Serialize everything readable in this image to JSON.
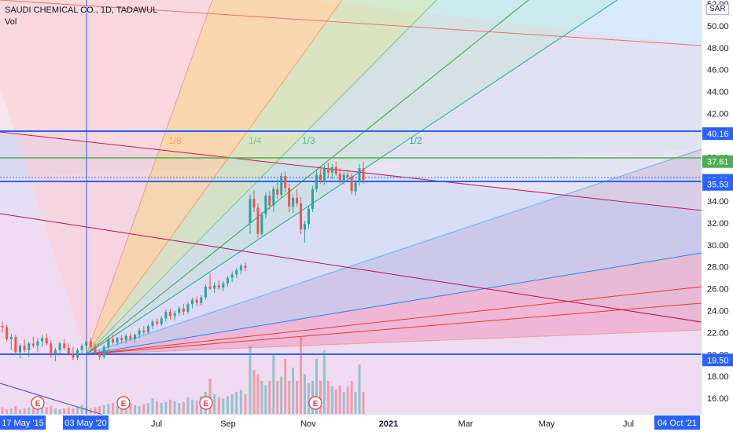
{
  "header": {
    "title": "SAUDI CHEMICAL CO., 1D, TADAWUL",
    "indicator": "Vol",
    "currency": "SAR"
  },
  "chart_data": {
    "type": "candlestick",
    "ylim": [
      14.5,
      52
    ],
    "y_ticks": [
      "16.00",
      "18.00",
      "20.00",
      "22.00",
      "24.00",
      "26.00",
      "28.00",
      "30.00",
      "32.00",
      "34.00",
      "36.00",
      "38.00",
      "40.00",
      "42.00",
      "44.00",
      "46.00",
      "48.00",
      "50.00",
      "52.00"
    ],
    "x_ticks": [
      "Jul",
      "Sep",
      "Nov",
      "2021",
      "Mar",
      "May",
      "Jul"
    ],
    "x_badges": [
      "17 May '15",
      "03 May '20",
      "04 Oct '21"
    ],
    "price_badges": [
      {
        "label": "40.16",
        "value": 40.16,
        "color": "#2962ff"
      },
      {
        "label": "37.61",
        "value": 37.61,
        "color": "#4caf50"
      },
      {
        "label": "35.90",
        "value": 35.9,
        "color": "#2962ff"
      },
      {
        "label": "35.53",
        "value": 35.53,
        "color": "#2962ff"
      },
      {
        "label": "19.50",
        "value": 19.5,
        "color": "#2962ff"
      }
    ],
    "fan_labels": [
      {
        "label": "1/8",
        "color": "#f6a35e"
      },
      {
        "label": "1/4",
        "color": "#81c784"
      },
      {
        "label": "1/3",
        "color": "#66bb6a"
      },
      {
        "label": "1/2",
        "color": "#26a69a"
      }
    ],
    "earnings_markers": [
      "E",
      "E",
      "E",
      "E"
    ],
    "price_series": [
      [
        22.6,
        23.0,
        22.0,
        22.5
      ],
      [
        22.5,
        22.7,
        21.2,
        21.4
      ],
      [
        21.4,
        21.9,
        20.4,
        21.6
      ],
      [
        21.6,
        21.8,
        20.0,
        20.2
      ],
      [
        20.2,
        21.0,
        19.6,
        20.8
      ],
      [
        20.8,
        21.4,
        20.2,
        20.4
      ],
      [
        20.4,
        21.2,
        19.8,
        21.0
      ],
      [
        21.0,
        21.6,
        20.6,
        20.8
      ],
      [
        20.8,
        21.5,
        20.2,
        21.2
      ],
      [
        21.2,
        21.8,
        20.7,
        21.5
      ],
      [
        21.5,
        21.9,
        20.8,
        21.0
      ],
      [
        21.0,
        21.3,
        19.7,
        20.0
      ],
      [
        20.0,
        20.6,
        19.4,
        20.4
      ],
      [
        20.4,
        21.2,
        20.1,
        21.0
      ],
      [
        21.0,
        21.4,
        20.4,
        20.6
      ],
      [
        20.6,
        21.0,
        19.9,
        20.1
      ],
      [
        20.1,
        20.7,
        19.5,
        19.7
      ],
      [
        19.7,
        20.6,
        19.5,
        20.4
      ],
      [
        20.4,
        21.0,
        20.0,
        20.8
      ],
      [
        20.8,
        21.4,
        20.2,
        21.2
      ],
      [
        21.2,
        21.5,
        20.5,
        20.7
      ],
      [
        20.7,
        21.0,
        20.0,
        20.2
      ],
      [
        20.2,
        20.4,
        19.5,
        19.8
      ],
      [
        19.8,
        20.9,
        19.6,
        20.7
      ],
      [
        20.7,
        21.6,
        20.4,
        21.4
      ],
      [
        21.4,
        21.8,
        20.9,
        21.1
      ],
      [
        21.1,
        21.6,
        20.8,
        21.5
      ],
      [
        21.5,
        21.8,
        21.0,
        21.3
      ],
      [
        21.3,
        21.9,
        21.0,
        21.7
      ],
      [
        21.7,
        22.0,
        21.2,
        21.4
      ],
      [
        21.4,
        21.9,
        21.1,
        21.8
      ],
      [
        21.8,
        22.4,
        21.5,
        22.2
      ],
      [
        22.2,
        22.6,
        21.8,
        22.0
      ],
      [
        22.0,
        22.8,
        21.9,
        22.6
      ],
      [
        22.6,
        23.2,
        22.3,
        23.0
      ],
      [
        23.0,
        23.3,
        22.5,
        22.8
      ],
      [
        22.8,
        23.5,
        22.6,
        23.3
      ],
      [
        23.3,
        24.1,
        23.0,
        23.9
      ],
      [
        23.9,
        24.2,
        23.2,
        23.5
      ],
      [
        23.5,
        24.0,
        23.1,
        23.8
      ],
      [
        23.8,
        24.4,
        23.5,
        24.2
      ],
      [
        24.2,
        24.6,
        23.6,
        23.9
      ],
      [
        23.9,
        24.8,
        23.7,
        24.6
      ],
      [
        24.6,
        25.2,
        24.2,
        25.0
      ],
      [
        25.0,
        25.3,
        24.4,
        24.7
      ],
      [
        24.7,
        25.4,
        24.5,
        25.2
      ],
      [
        25.2,
        26.4,
        25.0,
        26.2
      ],
      [
        26.2,
        27.4,
        25.9,
        26.0
      ],
      [
        26.0,
        26.6,
        25.6,
        26.3
      ],
      [
        26.3,
        26.8,
        25.9,
        26.1
      ],
      [
        26.1,
        26.7,
        25.8,
        26.5
      ],
      [
        26.5,
        27.2,
        26.2,
        27.0
      ],
      [
        27.0,
        27.6,
        26.6,
        27.3
      ],
      [
        27.3,
        27.9,
        27.0,
        27.7
      ],
      [
        27.7,
        28.3,
        27.3,
        28.1
      ],
      [
        28.1,
        28.4,
        27.6,
        27.9
      ],
      [
        32.0,
        34.6,
        31.0,
        34.2
      ],
      [
        34.2,
        35.0,
        33.0,
        33.4
      ],
      [
        33.4,
        33.8,
        30.6,
        31.0
      ],
      [
        31.0,
        33.0,
        30.8,
        32.8
      ],
      [
        32.8,
        34.8,
        32.4,
        34.5
      ],
      [
        34.5,
        34.9,
        33.2,
        33.6
      ],
      [
        33.6,
        35.4,
        33.0,
        35.1
      ],
      [
        35.1,
        36.0,
        34.2,
        34.6
      ],
      [
        34.6,
        36.6,
        34.3,
        36.3
      ],
      [
        36.3,
        36.7,
        34.8,
        35.2
      ],
      [
        35.2,
        35.6,
        33.0,
        33.5
      ],
      [
        33.5,
        34.6,
        32.9,
        34.3
      ],
      [
        34.3,
        35.1,
        33.5,
        33.8
      ],
      [
        33.8,
        34.4,
        31.0,
        31.4
      ],
      [
        31.4,
        32.2,
        30.2,
        31.9
      ],
      [
        31.9,
        33.6,
        31.5,
        33.3
      ],
      [
        33.3,
        35.4,
        33.0,
        35.1
      ],
      [
        35.1,
        36.8,
        34.8,
        36.4
      ],
      [
        36.4,
        37.0,
        35.6,
        35.9
      ],
      [
        35.9,
        37.3,
        35.5,
        37.0
      ],
      [
        37.0,
        37.5,
        36.2,
        36.6
      ],
      [
        36.6,
        37.4,
        36.0,
        37.1
      ],
      [
        37.1,
        37.6,
        36.3,
        36.5
      ],
      [
        36.5,
        37.0,
        35.6,
        35.9
      ],
      [
        35.9,
        36.7,
        35.5,
        36.4
      ],
      [
        36.4,
        36.9,
        35.9,
        36.2
      ],
      [
        36.2,
        36.5,
        34.6,
        34.9
      ],
      [
        34.9,
        36.0,
        34.5,
        35.7
      ],
      [
        35.7,
        37.4,
        35.4,
        37.0
      ],
      [
        37.0,
        37.6,
        35.6,
        35.9
      ]
    ],
    "volume_series": [
      0.06,
      0.04,
      0.05,
      0.07,
      0.04,
      0.05,
      0.06,
      0.05,
      0.04,
      0.05,
      0.06,
      0.07,
      0.05,
      0.04,
      0.05,
      0.06,
      0.05,
      0.07,
      0.08,
      0.06,
      0.05,
      0.06,
      0.07,
      0.08,
      0.09,
      0.1,
      0.07,
      0.08,
      0.09,
      0.1,
      0.08,
      0.07,
      0.09,
      0.1,
      0.14,
      0.12,
      0.1,
      0.11,
      0.13,
      0.12,
      0.1,
      0.11,
      0.15,
      0.13,
      0.12,
      0.16,
      0.2,
      0.32,
      0.18,
      0.15,
      0.14,
      0.16,
      0.18,
      0.2,
      0.22,
      0.18,
      0.62,
      0.4,
      0.36,
      0.3,
      0.26,
      0.3,
      0.55,
      0.3,
      0.34,
      0.5,
      0.3,
      0.42,
      0.3,
      0.7,
      0.36,
      0.28,
      0.3,
      0.5,
      0.3,
      0.58,
      0.3,
      0.25,
      0.22,
      0.26,
      0.2,
      0.25,
      0.3,
      0.2,
      0.45,
      0.2
    ]
  }
}
